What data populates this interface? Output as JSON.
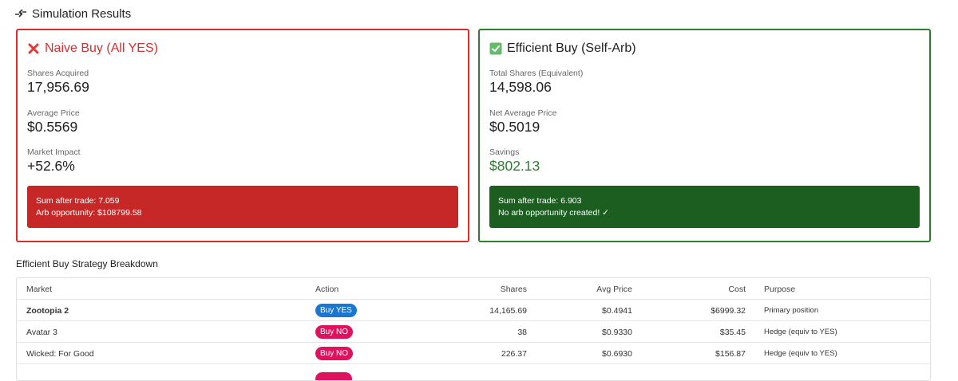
{
  "header": {
    "title": "Simulation Results",
    "icon": "split-arrows-icon"
  },
  "naive": {
    "icon": "red-x-icon",
    "title": "Naive Buy (All YES)",
    "metrics": [
      {
        "label": "Shares Acquired",
        "value": "17,956.69"
      },
      {
        "label": "Average Price",
        "value": "$0.5569"
      },
      {
        "label": "Market Impact",
        "value": "+52.6%"
      }
    ],
    "banner": {
      "line1": "Sum after trade: 7.059",
      "line2": "Arb opportunity: $108799.58"
    }
  },
  "efficient": {
    "icon": "green-check-box-icon",
    "title": "Efficient Buy (Self-Arb)",
    "metrics": [
      {
        "label": "Total Shares (Equivalent)",
        "value": "14,598.06"
      },
      {
        "label": "Net Average Price",
        "value": "$0.5019"
      },
      {
        "label": "Savings",
        "value": "$802.13"
      }
    ],
    "banner": {
      "line1": "Sum after trade: 6.903",
      "line2": "No arb opportunity created! ✓"
    }
  },
  "breakdown": {
    "title": "Efficient Buy Strategy Breakdown",
    "columns": {
      "market": "Market",
      "action": "Action",
      "shares": "Shares",
      "avg": "Avg Price",
      "cost": "Cost",
      "purpose": "Purpose"
    },
    "rows": [
      {
        "market": "Zootopia 2",
        "action": "Buy YES",
        "shares": "14,165.69",
        "avg": "$0.4941",
        "cost": "$6999.32",
        "purpose": "Primary position"
      },
      {
        "market": "Avatar 3",
        "action": "Buy NO",
        "shares": "38",
        "avg": "$0.9330",
        "cost": "$35.45",
        "purpose": "Hedge (equiv to YES)"
      },
      {
        "market": "Wicked: For Good",
        "action": "Buy NO",
        "shares": "226.37",
        "avg": "$0.6930",
        "cost": "$156.87",
        "purpose": "Hedge (equiv to YES)"
      }
    ]
  },
  "colors": {
    "red": "#d32f2f",
    "green": "#2e7d32",
    "blue_pill": "#1976d2",
    "pink_pill": "#e0115f"
  }
}
